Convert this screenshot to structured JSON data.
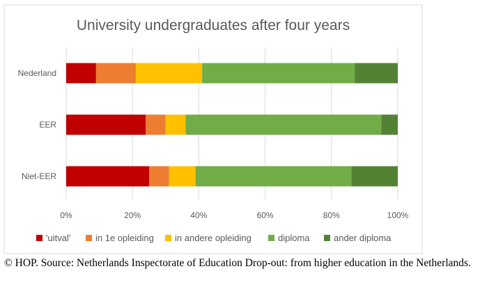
{
  "chart_data": {
    "type": "bar",
    "orientation": "horizontal",
    "stacked": true,
    "percent": true,
    "title": "University undergraduates after four years",
    "categories": [
      "Nederland",
      "EER",
      "Niet-EER"
    ],
    "series": [
      {
        "name": "'uitval'",
        "color": "#c00000",
        "values": [
          9,
          24,
          25
        ]
      },
      {
        "name": "in 1e opleiding",
        "color": "#ed7d31",
        "values": [
          12,
          6,
          6
        ]
      },
      {
        "name": "in andere opleiding",
        "color": "#ffc000",
        "values": [
          20,
          6,
          8
        ]
      },
      {
        "name": "diploma",
        "color": "#70ad47",
        "values": [
          46,
          59,
          47
        ]
      },
      {
        "name": "ander diploma",
        "color": "#548235",
        "values": [
          13,
          5,
          14
        ]
      }
    ],
    "xlim": [
      0,
      100
    ],
    "xticks": [
      0,
      20,
      40,
      60,
      80,
      100
    ],
    "xtick_labels": [
      "0%",
      "20%",
      "40%",
      "60%",
      "80%",
      "100%"
    ],
    "grid": true,
    "legend_position": "bottom"
  },
  "caption": "© HOP. Source: Netherlands Inspectorate of Education Drop-out: from higher education in the Netherlands.",
  "colors": {
    "gridline": "#d9d9d9",
    "text": "#595959",
    "border": "#d9d9d9"
  }
}
